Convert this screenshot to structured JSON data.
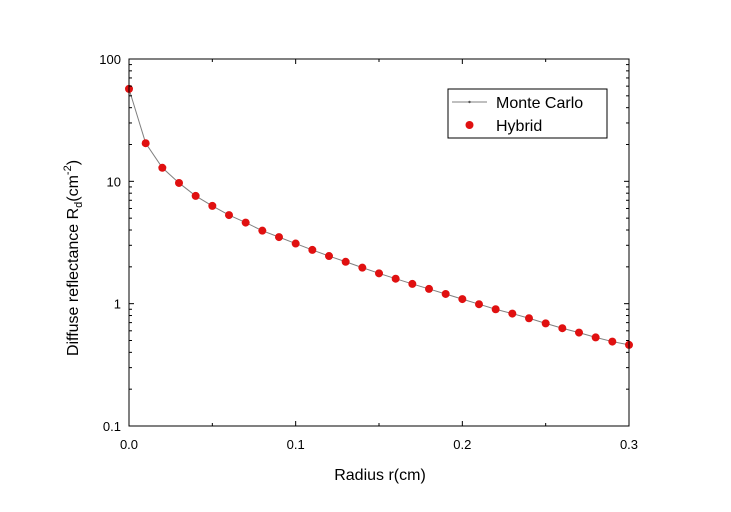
{
  "chart_data": {
    "type": "scatter",
    "xlabel": "Radius r(cm)",
    "ylabel": {
      "main": "Diffuse reflectance R",
      "subscript": "d",
      "unit_open": "(cm",
      "unit_sup": "-2",
      "unit_close": ")"
    },
    "x_scale": "linear",
    "y_scale": "log",
    "xlim": [
      0,
      0.3
    ],
    "ylim": [
      0.1,
      100
    ],
    "x_ticks": [
      0.0,
      0.1,
      0.2,
      0.3
    ],
    "x_tick_labels": [
      "0.0",
      "0.1",
      "0.2",
      "0.3"
    ],
    "y_ticks": [
      0.1,
      1,
      10,
      100
    ],
    "y_tick_labels": [
      "0.1",
      "1",
      "10",
      "100"
    ],
    "grid": false,
    "legend_position": "top-right",
    "series": [
      {
        "name": "Monte Carlo",
        "style": "line",
        "color": "#7f7f7f",
        "x": [
          0,
          0.01,
          0.02,
          0.03,
          0.04,
          0.05,
          0.06,
          0.07,
          0.08,
          0.09,
          0.1,
          0.11,
          0.12,
          0.13,
          0.14,
          0.15,
          0.16,
          0.17,
          0.18,
          0.19,
          0.2,
          0.21,
          0.22,
          0.23,
          0.24,
          0.25,
          0.26,
          0.27,
          0.28,
          0.29,
          0.3
        ],
        "y": [
          57,
          20.5,
          12.9,
          9.7,
          7.6,
          6.3,
          5.3,
          4.6,
          3.95,
          3.5,
          3.1,
          2.75,
          2.45,
          2.2,
          1.97,
          1.77,
          1.6,
          1.45,
          1.32,
          1.2,
          1.09,
          0.99,
          0.9,
          0.83,
          0.76,
          0.69,
          0.63,
          0.58,
          0.53,
          0.49,
          0.46
        ]
      },
      {
        "name": "Hybrid",
        "style": "markers",
        "color": "#e01010",
        "x": [
          0,
          0.01,
          0.02,
          0.03,
          0.04,
          0.05,
          0.06,
          0.07,
          0.08,
          0.09,
          0.1,
          0.11,
          0.12,
          0.13,
          0.14,
          0.15,
          0.16,
          0.17,
          0.18,
          0.19,
          0.2,
          0.21,
          0.22,
          0.23,
          0.24,
          0.25,
          0.26,
          0.27,
          0.28,
          0.29,
          0.3
        ],
        "y": [
          57,
          20.5,
          12.9,
          9.7,
          7.6,
          6.3,
          5.3,
          4.6,
          3.95,
          3.5,
          3.1,
          2.75,
          2.45,
          2.2,
          1.97,
          1.77,
          1.6,
          1.45,
          1.32,
          1.2,
          1.09,
          0.99,
          0.9,
          0.83,
          0.76,
          0.69,
          0.63,
          0.58,
          0.53,
          0.49,
          0.46
        ]
      }
    ]
  }
}
